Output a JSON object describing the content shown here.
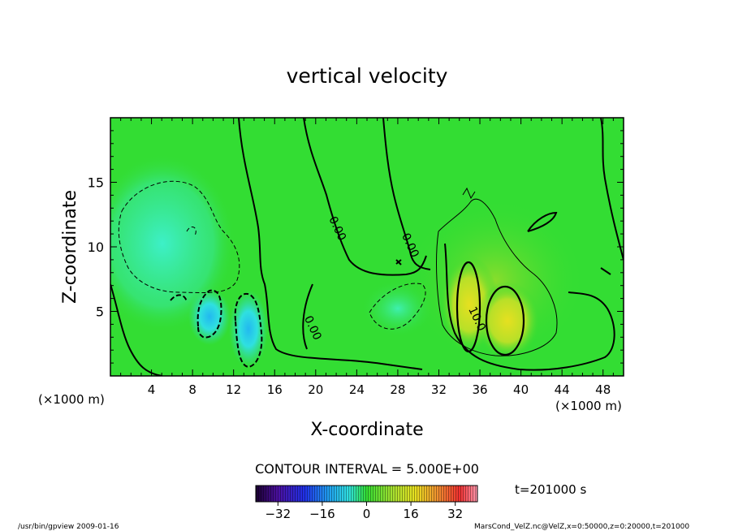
{
  "chart_data": {
    "type": "heatmap",
    "title": "vertical velocity",
    "xlabel": "X-coordinate",
    "ylabel": "Z-coordinate",
    "x_units": "(×1000 m)",
    "y_units": "(×1000 m)",
    "xlim": [
      0,
      50
    ],
    "ylim": [
      0,
      20
    ],
    "x_ticks": [
      4,
      8,
      12,
      16,
      20,
      24,
      28,
      32,
      36,
      40,
      44,
      48
    ],
    "y_ticks": [
      5,
      10,
      15
    ],
    "contour_interval_text": "CONTOUR INTERVAL = 5.000E+00",
    "contour_labels": [
      {
        "text": "0.00",
        "x": 21.8,
        "z": 11.3
      },
      {
        "text": "0.00",
        "x": 28.9,
        "z": 10.0
      },
      {
        "text": "0.00",
        "x": 19.4,
        "z": 3.6
      },
      {
        "text": "10.0",
        "x": 35.4,
        "z": 4.3
      }
    ],
    "colorbar": {
      "range": [
        -40,
        40
      ],
      "ticks": [
        -32,
        -16,
        0,
        16,
        32
      ]
    },
    "time_label": "t=201000 s",
    "features": [
      {
        "kind": "downdraft",
        "x_center": 10.0,
        "z_center": 4.5,
        "min_value": -20
      },
      {
        "kind": "downdraft",
        "x_center": 13.5,
        "z_center": 3.0,
        "min_value": -22
      },
      {
        "kind": "weak_downdraft",
        "x_center": 5.0,
        "z_center": 10.0,
        "min_value": -6
      },
      {
        "kind": "weak_downdraft",
        "x_center": 28.0,
        "z_center": 5.0,
        "min_value": -6
      },
      {
        "kind": "updraft",
        "x_center": 34.5,
        "z_center": 6.0,
        "max_value": 13
      },
      {
        "kind": "updraft",
        "x_center": 38.5,
        "z_center": 5.0,
        "max_value": 12
      }
    ],
    "colors": {
      "background_field": "#33dd33",
      "positive": "#dddd22",
      "negative": "#22dddd"
    }
  },
  "footer": {
    "program": "/usr/bin/gpview  2009-01-16",
    "source": "MarsCond_VelZ.nc@VelZ,x=0:50000,z=0:20000,t=201000"
  }
}
